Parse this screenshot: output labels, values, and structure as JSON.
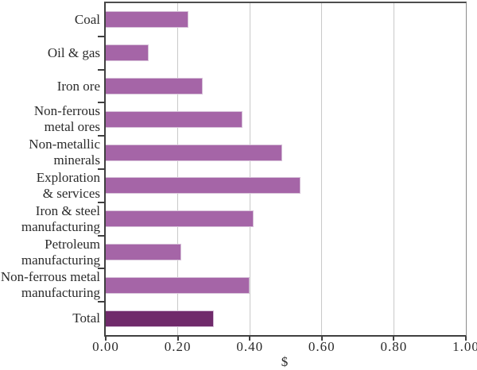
{
  "chart_data": {
    "type": "bar",
    "orientation": "horizontal",
    "title": "",
    "xlabel": "$",
    "xlim": [
      0,
      1
    ],
    "grid": true,
    "legend": "none",
    "categories": [
      "Coal",
      "Oil & gas",
      "Iron ore",
      "Non-ferrous\nmetal ores",
      "Non-metallic\nminerals",
      "Exploration\n& services",
      "Iron & steel\nmanufacturing",
      "Petroleum\nmanufacturing",
      "Non-ferrous metal\nmanufacturing",
      "Total"
    ],
    "values": [
      0.23,
      0.12,
      0.27,
      0.38,
      0.49,
      0.54,
      0.41,
      0.21,
      0.4,
      0.3
    ],
    "highlight_category": "Total",
    "highlight_index": 9,
    "xticks": [
      {
        "value": 0.0,
        "label": "0.00"
      },
      {
        "value": 0.2,
        "label": "0.20"
      },
      {
        "value": 0.4,
        "label": "0.40"
      },
      {
        "value": 0.6,
        "label": "0.60"
      },
      {
        "value": 0.8,
        "label": "0.80"
      },
      {
        "value": 1.0,
        "label": "1.00"
      }
    ],
    "colors": {
      "bar": "#a565a7",
      "bar_border": "#d7c2d9",
      "highlight_bar": "#702a6b",
      "gridline": "#c9c9c9",
      "axis": "#404040",
      "frame": "#8a8a8a",
      "text": "#2b2b2b"
    }
  }
}
